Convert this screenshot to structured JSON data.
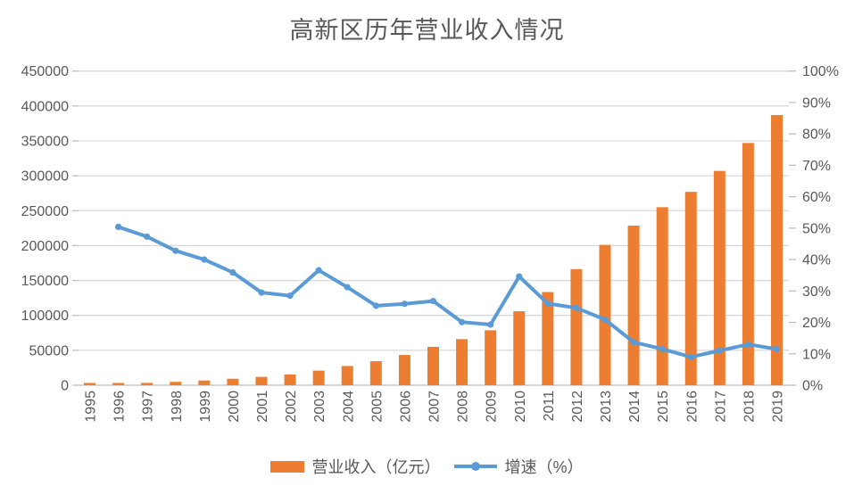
{
  "title": "高新区历年营业收入情况",
  "colors": {
    "bar": "#ED7D31",
    "line": "#5B9BD5",
    "gridline": "#D9D9D9",
    "axis": "#BFBFBF",
    "text": "#595959",
    "background": "#FFFFFF"
  },
  "legend": {
    "items": [
      {
        "label": "营业收入（亿元）",
        "type": "bar",
        "color": "#ED7D31"
      },
      {
        "label": "增速（%）",
        "type": "line",
        "color": "#5B9BD5"
      }
    ]
  },
  "chart_data": {
    "type": "bar",
    "subtype": "combo-bar-line-dual-axis",
    "title": "高新区历年营业收入情况",
    "categories": [
      "1995",
      "1996",
      "1997",
      "1998",
      "1999",
      "2000",
      "2001",
      "2002",
      "2003",
      "2004",
      "2005",
      "2006",
      "2007",
      "2008",
      "2009",
      "2010",
      "2011",
      "2012",
      "2013",
      "2014",
      "2015",
      "2016",
      "2017",
      "2018",
      "2019"
    ],
    "series": [
      {
        "name": "营业收入（亿元）",
        "type": "bar",
        "axis": "left",
        "color": "#ED7D31",
        "values": [
          1529,
          2300,
          3388,
          4839,
          6775,
          9209,
          11928,
          15326,
          20939,
          27466,
          34416,
          43320,
          54926,
          65986,
          78707,
          105917,
          133438,
          166290,
          201000,
          228600,
          255000,
          277000,
          307000,
          347000,
          387000
        ]
      },
      {
        "name": "增速（%）",
        "type": "line",
        "axis": "right",
        "color": "#5B9BD5",
        "marker": "circle",
        "values": [
          null,
          50.4,
          47.3,
          42.8,
          40.0,
          35.9,
          29.5,
          28.5,
          36.6,
          31.2,
          25.3,
          25.9,
          26.8,
          20.1,
          19.3,
          34.6,
          26.0,
          24.6,
          20.9,
          13.7,
          11.5,
          9.0,
          11.0,
          13.0,
          11.5
        ]
      }
    ],
    "left_axis": {
      "min": 0,
      "max": 450000,
      "step": 50000,
      "tick_labels": [
        "0",
        "50000",
        "100000",
        "150000",
        "200000",
        "250000",
        "300000",
        "350000",
        "400000",
        "450000"
      ]
    },
    "right_axis": {
      "min": 0,
      "max": 100,
      "step": 10,
      "tick_labels": [
        "0%",
        "10%",
        "20%",
        "30%",
        "40%",
        "50%",
        "60%",
        "70%",
        "80%",
        "90%",
        "100%"
      ]
    },
    "grid": true,
    "x_label_rotation": -90,
    "legend_position": "bottom"
  }
}
